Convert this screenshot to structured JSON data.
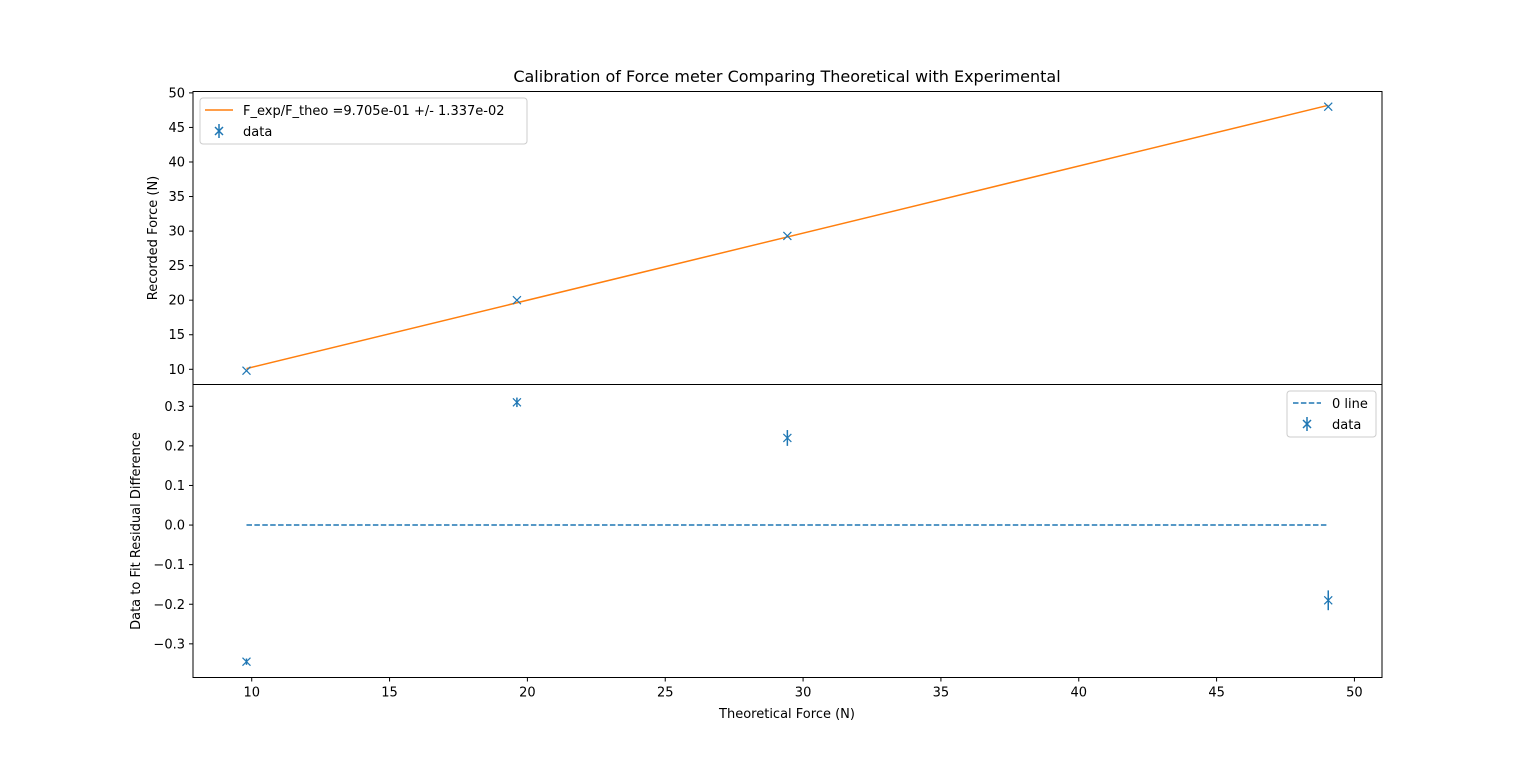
{
  "colors": {
    "data": "#1f77b4",
    "fit": "#ff7f0e",
    "zero_line": "#1f77b4",
    "axes": "#000000",
    "legend_border": "#cccccc"
  },
  "chart_data": [
    {
      "type": "scatter",
      "title": "Calibration of Force meter Comparing Theoretical with Experimental",
      "xlabel": "",
      "ylabel": "Recorded Force (N)",
      "xlim": [
        7.87,
        51.0
      ],
      "ylim": [
        7.8,
        50.2
      ],
      "yticks": [
        10,
        15,
        20,
        25,
        30,
        35,
        40,
        45,
        50
      ],
      "xticks_shared": true,
      "grid": false,
      "legend_position": "upper left",
      "series": [
        {
          "name": "F_exp/F_theo =9.705e-01 +/- 1.337e-02",
          "kind": "line",
          "x": [
            9.81,
            49.05
          ],
          "y": [
            10.1,
            48.2
          ]
        },
        {
          "name": "data",
          "kind": "errorbar",
          "x": [
            9.81,
            19.62,
            29.43,
            49.05
          ],
          "y": [
            9.8,
            20.0,
            29.3,
            48.0
          ],
          "yerr": [
            0.1,
            0.1,
            0.1,
            0.1
          ]
        }
      ]
    },
    {
      "type": "scatter",
      "title": "",
      "xlabel": "Theoretical Force (N)",
      "ylabel": "Data to Fit Residual Difference",
      "xlim": [
        7.87,
        51.0
      ],
      "ylim": [
        -0.385,
        0.355
      ],
      "xticks": [
        10,
        15,
        20,
        25,
        30,
        35,
        40,
        45,
        50
      ],
      "yticks": [
        -0.3,
        -0.2,
        -0.1,
        0.0,
        0.1,
        0.2,
        0.3
      ],
      "ytick_labels": [
        "−0.3",
        "−0.2",
        "−0.1",
        "0.0",
        "0.1",
        "0.2",
        "0.3"
      ],
      "grid": false,
      "legend_position": "upper right",
      "series": [
        {
          "name": "0 line",
          "kind": "dashed-line",
          "x": [
            9.81,
            49.05
          ],
          "y": [
            0.0,
            0.0
          ]
        },
        {
          "name": "data",
          "kind": "errorbar",
          "x": [
            9.81,
            19.62,
            29.43,
            49.05
          ],
          "y": [
            -0.345,
            0.31,
            0.22,
            -0.19
          ],
          "yerr": [
            0.008,
            0.012,
            0.02,
            0.025
          ]
        }
      ]
    }
  ]
}
